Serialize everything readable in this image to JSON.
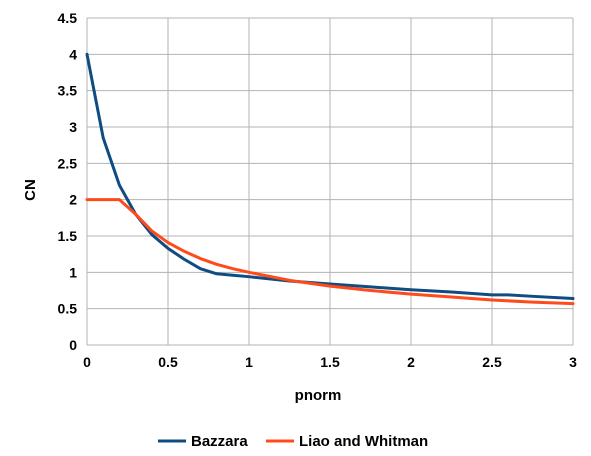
{
  "chart_data": {
    "type": "line",
    "xlabel": "pnorm",
    "ylabel": "CN",
    "xlim": [
      0,
      3
    ],
    "ylim": [
      0,
      4.5
    ],
    "xticks": [
      "0",
      "0.5",
      "1",
      "1.5",
      "2",
      "2.5",
      "3"
    ],
    "yticks": [
      "0",
      "0.5",
      "1",
      "1.5",
      "2",
      "2.5",
      "3",
      "3.5",
      "4",
      "4.5"
    ],
    "grid": true,
    "legend_position": "bottom",
    "series": [
      {
        "name": "Bazzara",
        "color": "#0f4c81",
        "x": [
          0,
          0.1,
          0.2,
          0.3,
          0.4,
          0.5,
          0.6,
          0.7,
          0.8,
          0.9,
          1.0,
          1.25,
          1.5,
          1.75,
          2.0,
          2.25,
          2.5,
          2.6,
          2.75,
          3.0
        ],
        "y": [
          4.0,
          2.85,
          2.2,
          1.8,
          1.52,
          1.33,
          1.18,
          1.05,
          0.98,
          0.96,
          0.94,
          0.88,
          0.84,
          0.8,
          0.76,
          0.73,
          0.69,
          0.69,
          0.67,
          0.64
        ]
      },
      {
        "name": "Liao and Whitman",
        "color": "#ff4a1c",
        "x": [
          0,
          0.1,
          0.2,
          0.3,
          0.4,
          0.5,
          0.6,
          0.7,
          0.8,
          0.9,
          1.0,
          1.25,
          1.5,
          1.75,
          2.0,
          2.25,
          2.5,
          2.75,
          3.0
        ],
        "y": [
          2.0,
          2.0,
          2.0,
          1.8,
          1.57,
          1.41,
          1.29,
          1.19,
          1.11,
          1.05,
          1.0,
          0.89,
          0.81,
          0.75,
          0.7,
          0.66,
          0.62,
          0.59,
          0.57
        ]
      }
    ]
  }
}
